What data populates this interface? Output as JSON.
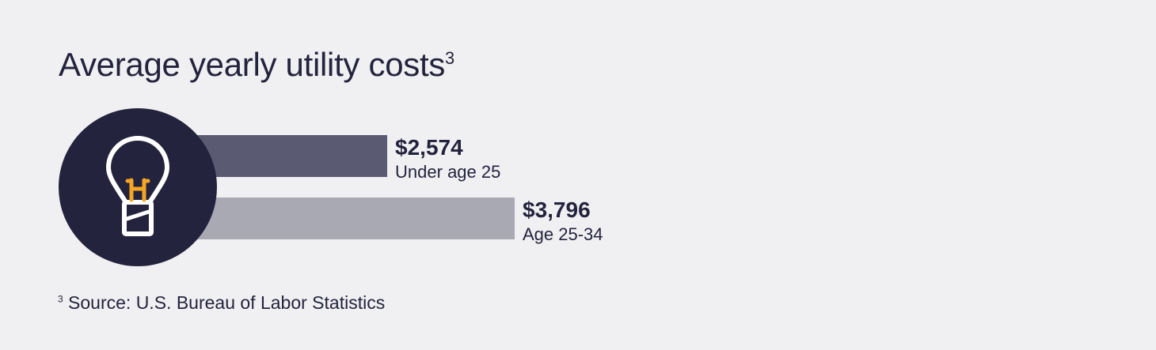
{
  "title": {
    "text": "Average yearly utility costs",
    "superscript": "3"
  },
  "icon": {
    "name": "lightbulb-icon",
    "circle_color": "#24233d",
    "bulb_color": "#ffffff",
    "filament_color": "#f5a623"
  },
  "chart_data": {
    "type": "bar",
    "orientation": "horizontal",
    "categories": [
      "Under age 25",
      "Age 25-34"
    ],
    "values": [
      2574,
      3796
    ],
    "value_labels": [
      "$2,574",
      "$3,796"
    ],
    "colors": [
      "#5a5a73",
      "#a9a9b4"
    ],
    "title": "Average yearly utility costs",
    "xlabel": "",
    "ylabel": "",
    "grid": false
  },
  "footnote": {
    "marker": "3",
    "text": "Source: U.S. Bureau of Labor Statistics"
  }
}
